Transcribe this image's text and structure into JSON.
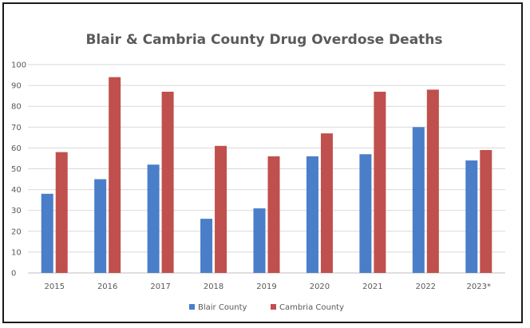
{
  "chart_data": {
    "type": "bar",
    "title": "Blair & Cambria County Drug Overdose Deaths",
    "xlabel": "",
    "ylabel": "",
    "categories": [
      "2015",
      "2016",
      "2017",
      "2018",
      "2019",
      "2020",
      "2021",
      "2022",
      "2023*"
    ],
    "series": [
      {
        "name": "Blair County",
        "color": "#4a7ec9",
        "values": [
          38,
          45,
          52,
          26,
          31,
          56,
          57,
          70,
          54
        ]
      },
      {
        "name": "Cambria County",
        "color": "#c0504d",
        "values": [
          58,
          94,
          87,
          61,
          56,
          67,
          87,
          88,
          59
        ]
      }
    ],
    "ylim": [
      0,
      100
    ],
    "yticks": [
      0,
      10,
      20,
      30,
      40,
      50,
      60,
      70,
      80,
      90,
      100
    ],
    "grid": true,
    "legend_position": "bottom"
  }
}
